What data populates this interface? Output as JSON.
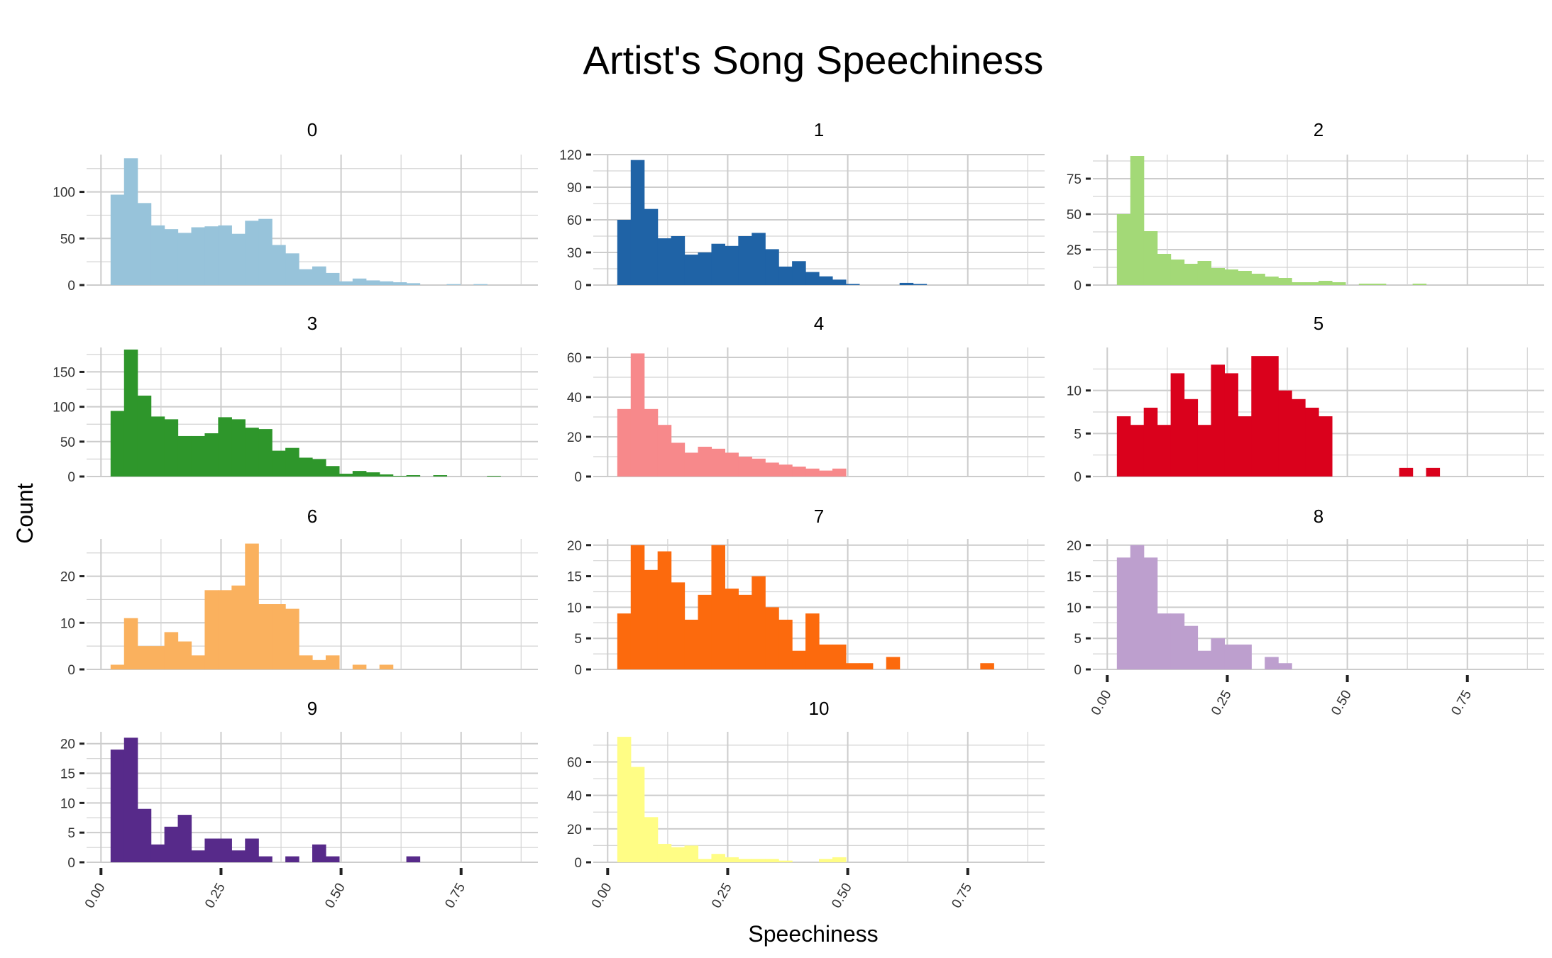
{
  "chart_data": {
    "type": "bar",
    "title": "Artist's Song Speechiness",
    "xlabel": "Speechiness",
    "ylabel": "Count",
    "xlim": [
      -0.03,
      0.91
    ],
    "bin_start": 0.02,
    "bin_width": 0.028,
    "x_ticks": [
      0.0,
      0.25,
      0.5,
      0.75
    ],
    "x_tick_labels": [
      "0.00",
      "0.25",
      "0.50",
      "0.75"
    ],
    "grid": true,
    "facets": [
      {
        "label": "0",
        "color": "#97C3DA",
        "ymax": 140,
        "y_ticks": [
          0,
          50,
          100
        ],
        "values": [
          97,
          136,
          88,
          64,
          60,
          56,
          62,
          63,
          64,
          55,
          69,
          71,
          43,
          34,
          17,
          20,
          13,
          4,
          7,
          5,
          4,
          3,
          2,
          0,
          0,
          1,
          0,
          1
        ]
      },
      {
        "label": "1",
        "color": "#1F63A6",
        "ymax": 120,
        "y_ticks": [
          0,
          30,
          60,
          90,
          120
        ],
        "values": [
          60,
          115,
          70,
          43,
          45,
          28,
          30,
          38,
          36,
          45,
          48,
          33,
          17,
          22,
          12,
          8,
          5,
          1,
          0,
          0,
          0,
          2,
          1
        ]
      },
      {
        "label": "2",
        "color": "#A3D977",
        "ymax": 92,
        "y_ticks": [
          0,
          25,
          50,
          75
        ],
        "values": [
          50,
          91,
          38,
          22,
          18,
          15,
          17,
          12,
          11,
          10,
          8,
          6,
          5,
          2,
          2,
          3,
          2,
          0,
          1,
          1,
          0,
          0,
          1
        ]
      },
      {
        "label": "3",
        "color": "#2E962B",
        "ymax": 185,
        "y_ticks": [
          0,
          50,
          100,
          150
        ],
        "values": [
          94,
          182,
          116,
          86,
          82,
          58,
          58,
          62,
          85,
          82,
          70,
          68,
          37,
          41,
          27,
          25,
          15,
          4,
          8,
          6,
          3,
          1,
          2,
          0,
          2,
          0,
          0,
          0,
          1
        ]
      },
      {
        "label": "4",
        "color": "#F7898B",
        "ymax": 65,
        "y_ticks": [
          0,
          20,
          40,
          60
        ],
        "values": [
          34,
          62,
          34,
          26,
          17,
          12,
          15,
          14,
          12,
          10,
          9,
          7,
          6,
          5,
          4,
          3,
          4
        ]
      },
      {
        "label": "5",
        "color": "#DA011C",
        "ymax": 15,
        "y_ticks": [
          0,
          5,
          10
        ],
        "values": [
          7,
          6,
          8,
          6,
          12,
          9,
          6,
          13,
          12,
          7,
          14,
          14,
          10,
          9,
          8,
          7,
          0,
          0,
          0,
          0,
          0,
          1,
          0,
          1
        ]
      },
      {
        "label": "6",
        "color": "#FAB15E",
        "ymax": 28,
        "y_ticks": [
          0,
          10,
          20
        ],
        "values": [
          1,
          11,
          5,
          5,
          8,
          6,
          3,
          17,
          17,
          18,
          27,
          14,
          14,
          13,
          3,
          2,
          3,
          0,
          1,
          0,
          1
        ]
      },
      {
        "label": "7",
        "color": "#FC6A0D",
        "ymax": 21,
        "y_ticks": [
          0,
          5,
          10,
          15,
          20
        ],
        "values": [
          9,
          20,
          16,
          19,
          14,
          8,
          12,
          20,
          13,
          12,
          15,
          10,
          8,
          3,
          9,
          4,
          4,
          1,
          1,
          0,
          2,
          0,
          0,
          0,
          0,
          0,
          0,
          1
        ]
      },
      {
        "label": "8",
        "color": "#BD9FCE",
        "ymax": 21,
        "y_ticks": [
          0,
          5,
          10,
          15,
          20
        ],
        "values": [
          18,
          20,
          18,
          9,
          9,
          7,
          3,
          5,
          4,
          4,
          0,
          2,
          1
        ]
      },
      {
        "label": "9",
        "color": "#572A8A",
        "ymax": 22,
        "y_ticks": [
          0,
          5,
          10,
          15,
          20
        ],
        "values": [
          19,
          21,
          9,
          3,
          6,
          8,
          2,
          4,
          4,
          2,
          4,
          1,
          0,
          1,
          0,
          3,
          1,
          0,
          0,
          0,
          0,
          0,
          1
        ]
      },
      {
        "label": "10",
        "color": "#FFFD85",
        "ymax": 78,
        "y_ticks": [
          0,
          20,
          40,
          60
        ],
        "values": [
          75,
          57,
          27,
          11,
          9,
          10,
          2,
          5,
          3,
          2,
          2,
          2,
          1,
          0,
          0,
          2,
          3
        ]
      }
    ]
  }
}
